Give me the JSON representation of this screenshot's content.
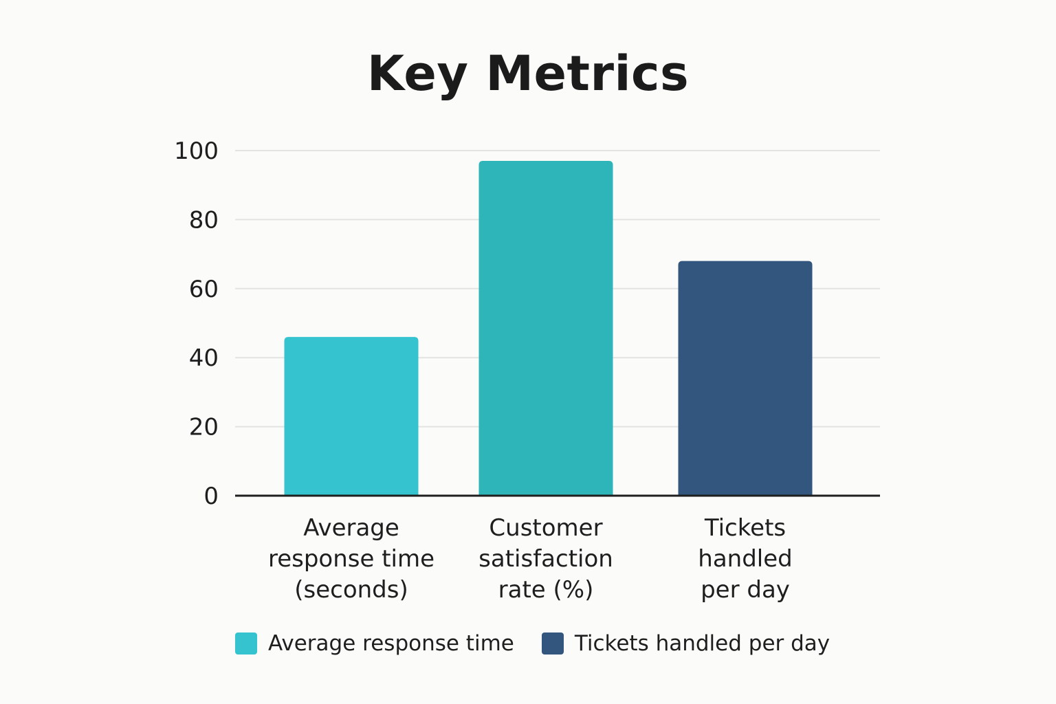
{
  "chart_data": {
    "type": "bar",
    "title": "Key Metrics",
    "categories": [
      [
        "Average",
        "response time",
        "(seconds)"
      ],
      [
        "Customer",
        "satisfaction",
        "rate (%)"
      ],
      [
        "Tickets",
        "handled",
        "per day"
      ]
    ],
    "values": [
      46,
      97,
      68
    ],
    "bar_colors": [
      "#35c4cf",
      "#2db5b9",
      "#33567f"
    ],
    "ylim": [
      0,
      100
    ],
    "yticks": [
      0,
      20,
      40,
      60,
      80,
      100
    ],
    "ytick_labels": [
      "0",
      "20",
      "40",
      "60",
      "80",
      "100"
    ],
    "grid": true,
    "xlabel": "",
    "ylabel": "",
    "legend": {
      "position": "bottom",
      "items": [
        {
          "label": "Average response time",
          "color": "#35c4cf"
        },
        {
          "label": "Tickets handled per day",
          "color": "#33567f"
        }
      ]
    }
  },
  "colors": {
    "gridline": "#e3e3e1",
    "axis": "#1e1e1e",
    "background": "#fbfbf9"
  }
}
